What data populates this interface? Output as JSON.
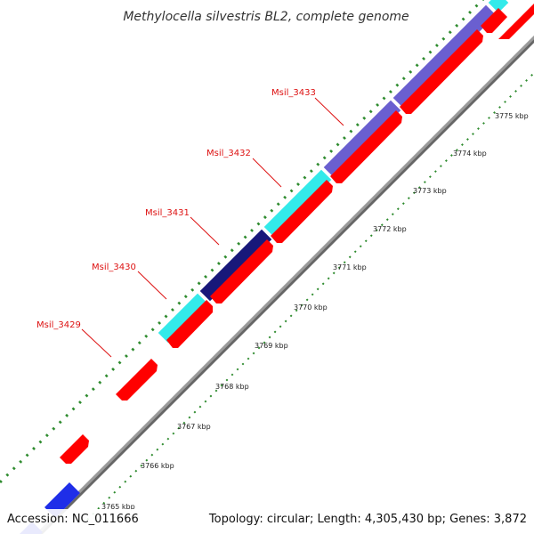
{
  "title": "Methylocella silvestris BL2, complete genome",
  "footer": {
    "accession": "Accession: NC_011666",
    "summary": "Topology: circular; Length: 4,305,430 bp; Genes: 3,872"
  },
  "colors": {
    "backbone": "#8c8c8c",
    "cds": "#ff0000",
    "label": "#dd1111",
    "tick": "#2e8b2e",
    "dark_blue": "#18187a",
    "slate_blue": "#6a5fd0",
    "cyan": "#33eaea",
    "blue": "#1f2ee8"
  },
  "scale_ticks": [
    "3765 kbp",
    "3766 kbp",
    "3767 kbp",
    "3768 kbp",
    "3769 kbp",
    "3770 kbp",
    "3771 kbp",
    "3772 kbp",
    "3773 kbp",
    "3774 kbp",
    "3775 kbp"
  ],
  "gene_labels": [
    "Msil_3429",
    "Msil_3430",
    "Msil_3431",
    "Msil_3432",
    "Msil_3433"
  ]
}
